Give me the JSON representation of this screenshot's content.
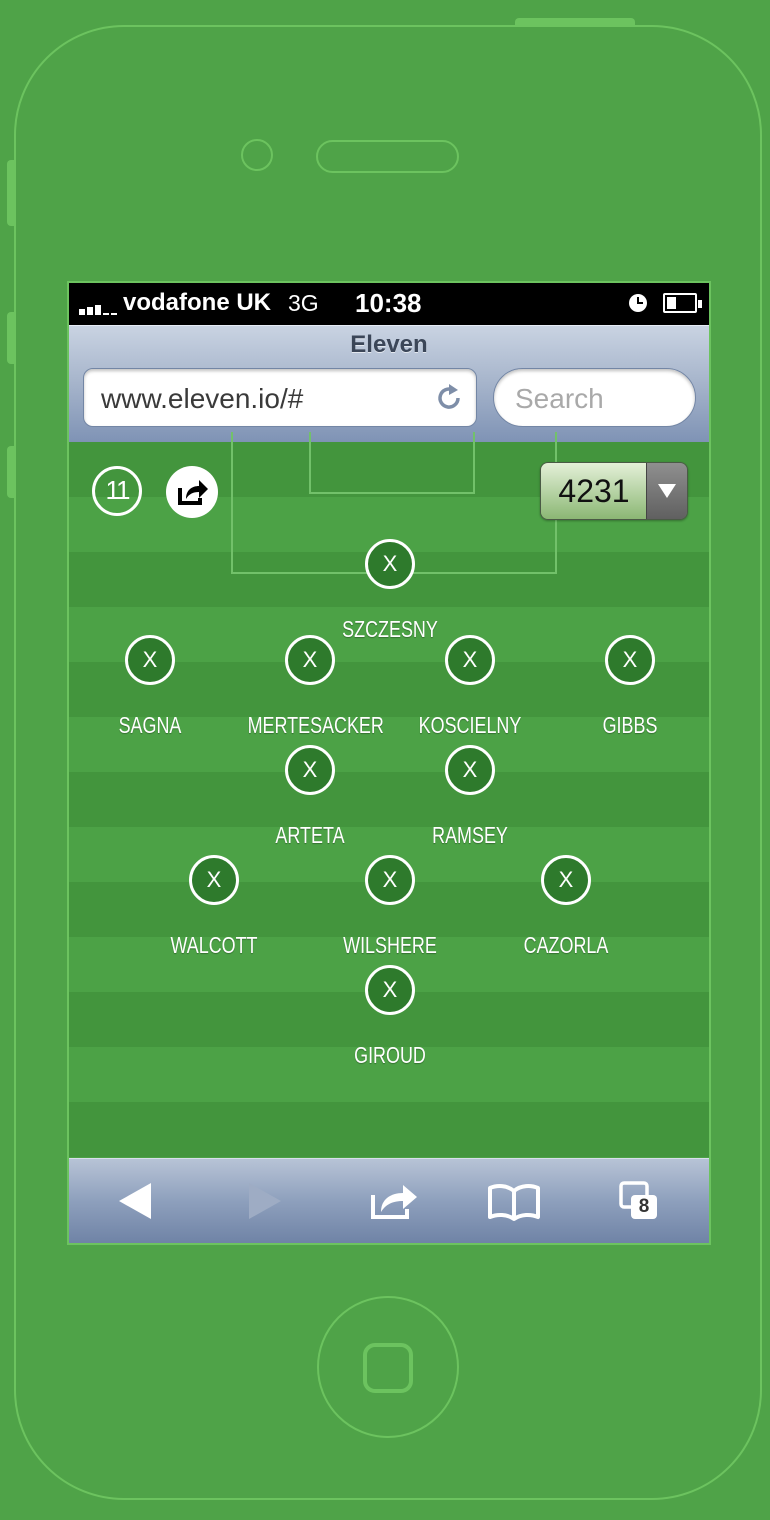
{
  "status_bar": {
    "carrier": "vodafone UK",
    "network": "3G",
    "time": "10:38"
  },
  "browser": {
    "page_title": "Eleven",
    "url": "www.eleven.io/#",
    "search_placeholder": "Search",
    "tabs_count": "8"
  },
  "app": {
    "logo_text": "11",
    "formation": "4231"
  },
  "players": [
    {
      "name": "SZCZESNY",
      "button": "X"
    },
    {
      "name": "SAGNA",
      "button": "X"
    },
    {
      "name": "MERTESACKER",
      "button": "X"
    },
    {
      "name": "KOSCIELNY",
      "button": "X"
    },
    {
      "name": "GIBBS",
      "button": "X"
    },
    {
      "name": "ARTETA",
      "button": "X"
    },
    {
      "name": "RAMSEY",
      "button": "X"
    },
    {
      "name": "WALCOTT",
      "button": "X"
    },
    {
      "name": "WILSHERE",
      "button": "X"
    },
    {
      "name": "CAZORLA",
      "button": "X"
    },
    {
      "name": "GIROUD",
      "button": "X"
    }
  ],
  "colors": {
    "background": "#4fa348",
    "outline": "#6cc35f",
    "pitch_dark": "#43953d",
    "pitch_light": "#4ca246"
  }
}
